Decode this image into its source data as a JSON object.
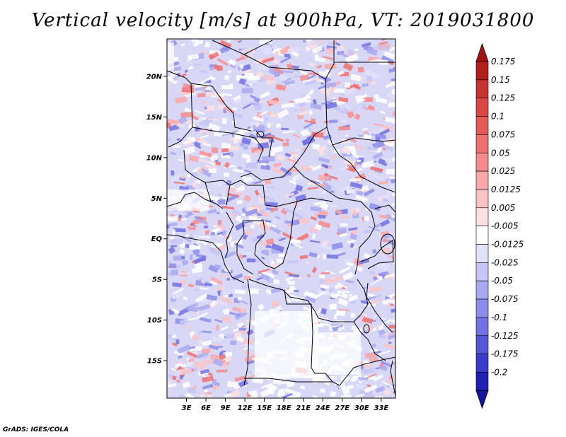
{
  "chart_data": {
    "type": "heatmap",
    "title": "Vertical velocity [m/s] at 900hPa, VT: 2019031800",
    "variable": "Vertical velocity",
    "units": "m/s",
    "level": "900hPa",
    "valid_time": "2019031800",
    "xlabel": "",
    "ylabel": "",
    "xlim": [
      0,
      35.2
    ],
    "ylim": [
      -19.6,
      24.6
    ],
    "x_ticks": [
      {
        "value": 3,
        "label": "3E"
      },
      {
        "value": 6,
        "label": "6E"
      },
      {
        "value": 9,
        "label": "9E"
      },
      {
        "value": 12,
        "label": "12E"
      },
      {
        "value": 15,
        "label": "15E"
      },
      {
        "value": 18,
        "label": "18E"
      },
      {
        "value": 21,
        "label": "21E"
      },
      {
        "value": 24,
        "label": "24E"
      },
      {
        "value": 27,
        "label": "27E"
      },
      {
        "value": 30,
        "label": "30E"
      },
      {
        "value": 33,
        "label": "33E"
      }
    ],
    "y_ticks": [
      {
        "value": 20,
        "label": "20N"
      },
      {
        "value": 15,
        "label": "15N"
      },
      {
        "value": 10,
        "label": "10N"
      },
      {
        "value": 5,
        "label": "5N"
      },
      {
        "value": 0,
        "label": "EQ"
      },
      {
        "value": -5,
        "label": "5S"
      },
      {
        "value": -10,
        "label": "10S"
      },
      {
        "value": -15,
        "label": "15S"
      }
    ],
    "colorbar": {
      "levels": [
        {
          "label": "0.175",
          "color": "#b41e1e"
        },
        {
          "label": "0.15",
          "color": "#c83232"
        },
        {
          "label": "0.125",
          "color": "#dc4646"
        },
        {
          "label": "0.1",
          "color": "#e65a5a"
        },
        {
          "label": "0.075",
          "color": "#ef7070"
        },
        {
          "label": "0.05",
          "color": "#f48c8c"
        },
        {
          "label": "0.025",
          "color": "#f8a8a8"
        },
        {
          "label": "0.0125",
          "color": "#fbc4c4"
        },
        {
          "label": "0.005",
          "color": "#fde0e0"
        },
        {
          "label": "-0.005",
          "color": "#ffffff"
        },
        {
          "label": "-0.0125",
          "color": "#e2e2fb"
        },
        {
          "label": "-0.025",
          "color": "#c6c6f6"
        },
        {
          "label": "-0.05",
          "color": "#aaaaf0"
        },
        {
          "label": "-0.075",
          "color": "#8e8eea"
        },
        {
          "label": "-0.1",
          "color": "#7272e2"
        },
        {
          "label": "-0.125",
          "color": "#5656d8"
        },
        {
          "label": "-0.175",
          "color": "#3a3acc"
        },
        {
          "label": "-0.2",
          "color": "#2020b4"
        }
      ],
      "cap_top_color": "#a01414",
      "cap_bottom_color": "#14149c"
    }
  },
  "credit": "GrADS: IGES/COLA"
}
